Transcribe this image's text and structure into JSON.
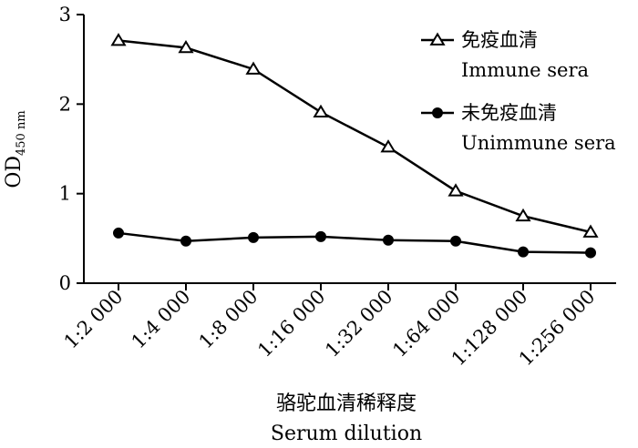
{
  "chart_data": {
    "type": "line",
    "categories": [
      "1:2 000",
      "1:4 000",
      "1:8 000",
      "1:16 000",
      "1:32 000",
      "1:64 000",
      "1:128 000",
      "1:256 000"
    ],
    "series": [
      {
        "name_cn": "免疫血清",
        "name_en": "Immune sera",
        "marker": "triangle-open",
        "values": [
          2.71,
          2.63,
          2.39,
          1.91,
          1.52,
          1.03,
          0.75,
          0.57
        ]
      },
      {
        "name_cn": "未免疫血清",
        "name_en": "Unimmune sera",
        "marker": "circle-filled",
        "values": [
          0.56,
          0.47,
          0.51,
          0.52,
          0.48,
          0.47,
          0.35,
          0.34
        ]
      }
    ],
    "ylabel_main": "OD",
    "ylabel_sub": "450 nm",
    "xlabel_cn": "骆驼血清稀释度",
    "xlabel_en": "Serum dilution",
    "ylim": [
      0,
      3
    ],
    "yticks": [
      "0",
      "1",
      "2",
      "3"
    ],
    "grid": false,
    "legend_position": "top-right"
  }
}
